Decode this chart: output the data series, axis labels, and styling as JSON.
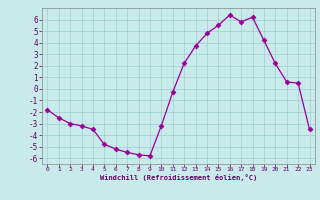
{
  "x": [
    0,
    1,
    2,
    3,
    4,
    5,
    6,
    7,
    8,
    9,
    10,
    11,
    12,
    13,
    14,
    15,
    16,
    17,
    18,
    19,
    20,
    21,
    22,
    23
  ],
  "y": [
    -1.8,
    -2.5,
    -3.0,
    -3.2,
    -3.5,
    -4.8,
    -5.2,
    -5.5,
    -5.7,
    -5.8,
    -3.2,
    -0.3,
    2.2,
    3.7,
    4.8,
    5.5,
    6.4,
    5.8,
    6.2,
    4.2,
    2.2,
    0.6,
    0.5,
    -3.5
  ],
  "line_color": "#990099",
  "marker": "D",
  "marker_size": 2.5,
  "bg_color": "#c8eaea",
  "grid_color": "#9ecece",
  "xlabel": "Windchill (Refroidissement éolien,°C)",
  "xlabel_color": "#660066",
  "tick_color": "#660066",
  "ylim": [
    -6.5,
    7.0
  ],
  "xlim": [
    -0.5,
    23.5
  ],
  "yticks": [
    -6,
    -5,
    -4,
    -3,
    -2,
    -1,
    0,
    1,
    2,
    3,
    4,
    5,
    6
  ],
  "xticks": [
    0,
    1,
    2,
    3,
    4,
    5,
    6,
    7,
    8,
    9,
    10,
    11,
    12,
    13,
    14,
    15,
    16,
    17,
    18,
    19,
    20,
    21,
    22,
    23
  ]
}
